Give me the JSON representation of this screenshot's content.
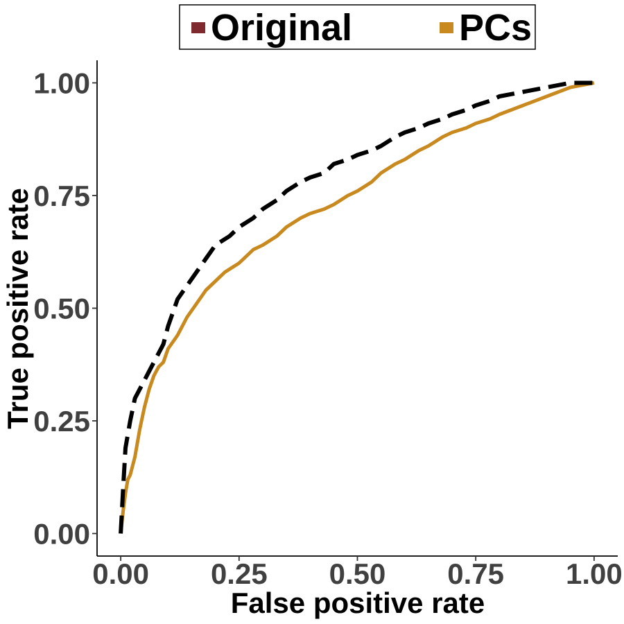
{
  "chart_data": {
    "type": "line",
    "xlabel": "False positive rate",
    "ylabel": "True positive rate",
    "xlim": [
      -0.05,
      1.05
    ],
    "ylim": [
      -0.05,
      1.05
    ],
    "xticks": [
      0.0,
      0.25,
      0.5,
      0.75,
      1.0
    ],
    "yticks": [
      0.0,
      0.25,
      0.5,
      0.75,
      1.0
    ],
    "xtick_labels": [
      "0.00",
      "0.25",
      "0.50",
      "0.75",
      "1.00"
    ],
    "ytick_labels": [
      "0.00",
      "0.25",
      "0.50",
      "0.75",
      "1.00"
    ],
    "grid": false,
    "legend": {
      "position": "top",
      "entries": [
        {
          "name": "Original",
          "color": "#7f2a2f"
        },
        {
          "name": "PCs",
          "color": "#c8891f"
        }
      ]
    },
    "series": [
      {
        "name": "PCs",
        "color": "#c8891f",
        "style": "solid",
        "x": [
          0.0,
          0.005,
          0.01,
          0.015,
          0.02,
          0.03,
          0.04,
          0.05,
          0.06,
          0.07,
          0.08,
          0.09,
          0.1,
          0.12,
          0.14,
          0.16,
          0.18,
          0.2,
          0.22,
          0.25,
          0.28,
          0.3,
          0.33,
          0.35,
          0.38,
          0.4,
          0.43,
          0.45,
          0.48,
          0.5,
          0.53,
          0.55,
          0.58,
          0.6,
          0.63,
          0.65,
          0.68,
          0.7,
          0.73,
          0.75,
          0.78,
          0.8,
          0.85,
          0.9,
          0.95,
          1.0
        ],
        "y": [
          0.0,
          0.05,
          0.09,
          0.12,
          0.13,
          0.17,
          0.23,
          0.28,
          0.32,
          0.35,
          0.37,
          0.38,
          0.41,
          0.44,
          0.48,
          0.51,
          0.54,
          0.56,
          0.58,
          0.6,
          0.63,
          0.64,
          0.66,
          0.68,
          0.7,
          0.71,
          0.72,
          0.73,
          0.75,
          0.76,
          0.78,
          0.8,
          0.82,
          0.83,
          0.85,
          0.86,
          0.88,
          0.89,
          0.9,
          0.91,
          0.92,
          0.93,
          0.95,
          0.97,
          0.99,
          1.0
        ]
      },
      {
        "name": "",
        "color": "#000000",
        "style": "dashed",
        "x": [
          0.0,
          0.005,
          0.01,
          0.02,
          0.03,
          0.05,
          0.07,
          0.09,
          0.1,
          0.12,
          0.14,
          0.16,
          0.18,
          0.2,
          0.23,
          0.25,
          0.28,
          0.3,
          0.33,
          0.35,
          0.38,
          0.4,
          0.43,
          0.45,
          0.48,
          0.5,
          0.53,
          0.55,
          0.58,
          0.6,
          0.63,
          0.65,
          0.68,
          0.7,
          0.73,
          0.75,
          0.78,
          0.8,
          0.85,
          0.9,
          0.95,
          1.0
        ],
        "y": [
          0.0,
          0.1,
          0.19,
          0.25,
          0.3,
          0.34,
          0.38,
          0.42,
          0.46,
          0.52,
          0.55,
          0.58,
          0.61,
          0.64,
          0.66,
          0.68,
          0.7,
          0.72,
          0.74,
          0.76,
          0.78,
          0.79,
          0.8,
          0.82,
          0.83,
          0.84,
          0.85,
          0.86,
          0.88,
          0.89,
          0.9,
          0.91,
          0.92,
          0.93,
          0.94,
          0.95,
          0.96,
          0.97,
          0.98,
          0.99,
          1.0,
          1.0
        ]
      }
    ]
  }
}
